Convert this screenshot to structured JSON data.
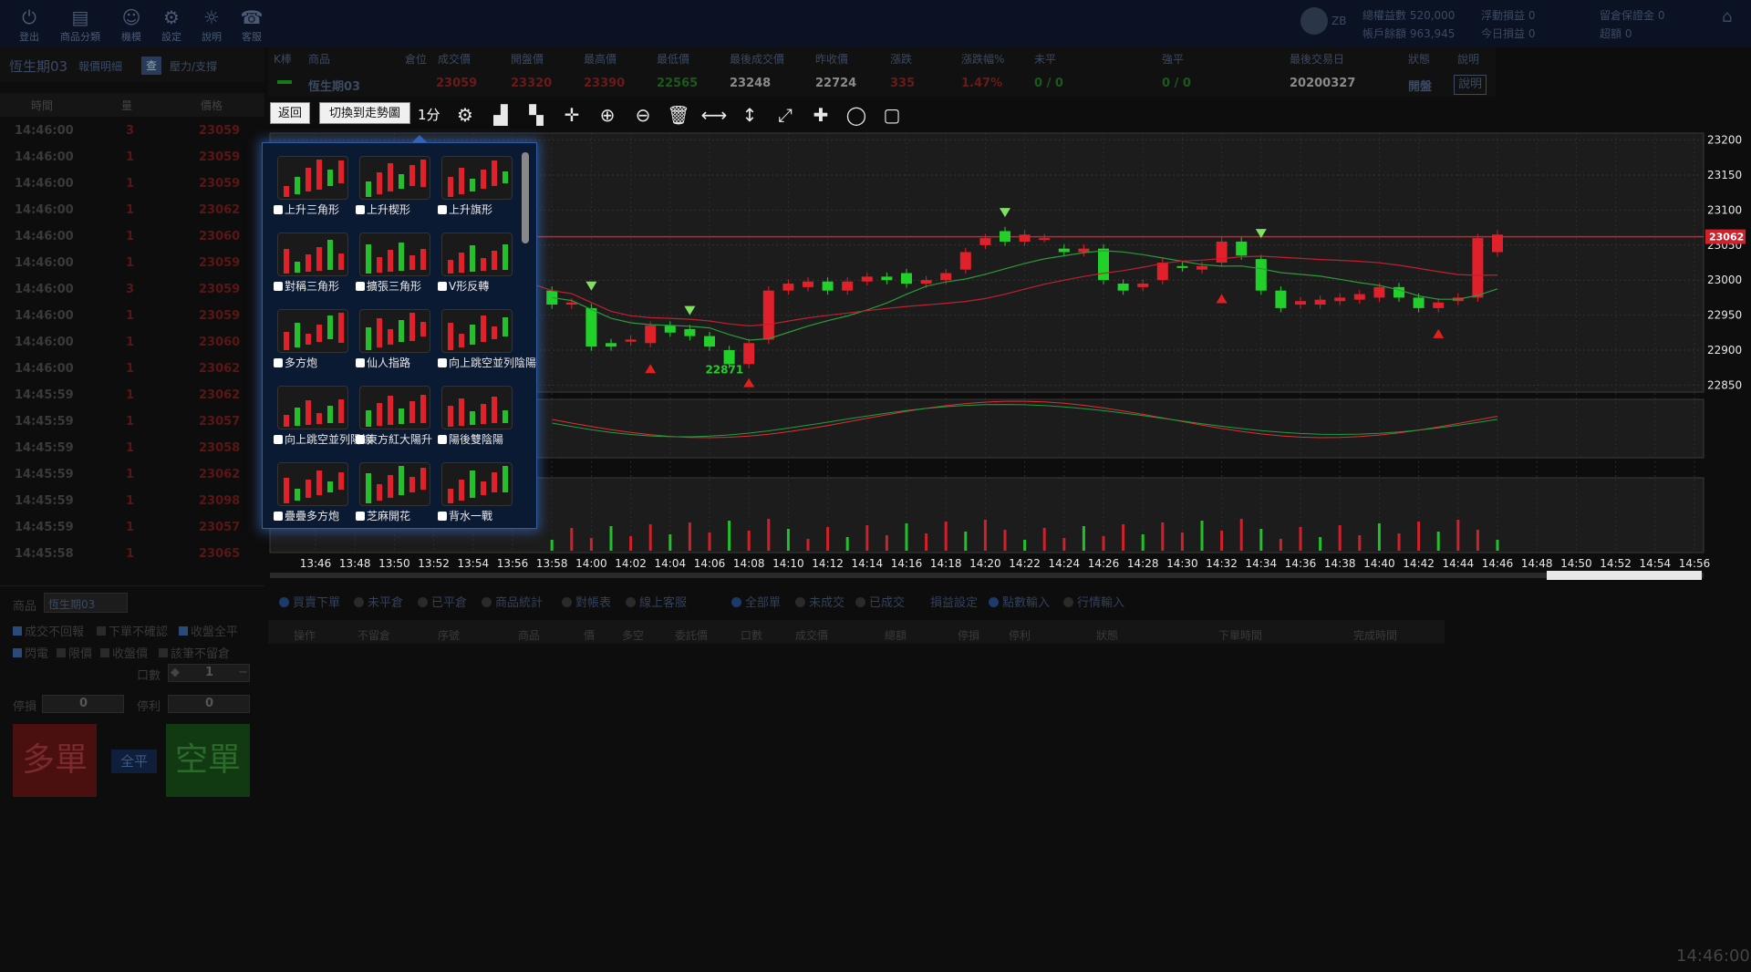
{
  "topbar": {
    "buttons": [
      {
        "label": "登出",
        "icon": "power-icon"
      },
      {
        "label": "商品分類",
        "icon": "folder-icon"
      },
      {
        "label": "機模",
        "icon": "simulator-icon"
      },
      {
        "label": "設定",
        "icon": "gear-icon"
      },
      {
        "label": "說明",
        "icon": "bulb-icon"
      },
      {
        "label": "客服",
        "icon": "service-icon"
      }
    ],
    "user": "ZB",
    "equity_label": "總權益數 520,000",
    "balance_label": "帳戶餘額 963,945",
    "float_pl": "浮動損益 0",
    "today_pl": "今日損益 0",
    "margin": "留倉保證金 0",
    "overrun": "超額 0"
  },
  "left": {
    "product": "恆生期03",
    "tab_quote": "報價明細",
    "tab_query": "查",
    "tab_sr": "壓力/支撐",
    "cols": [
      "時間",
      "量",
      "價格"
    ],
    "ticks": [
      {
        "t": "14:46:00",
        "q": "3",
        "p": "23059"
      },
      {
        "t": "14:46:00",
        "q": "1",
        "p": "23059"
      },
      {
        "t": "14:46:00",
        "q": "1",
        "p": "23059"
      },
      {
        "t": "14:46:00",
        "q": "1",
        "p": "23062"
      },
      {
        "t": "14:46:00",
        "q": "1",
        "p": "23060"
      },
      {
        "t": "14:46:00",
        "q": "1",
        "p": "23059"
      },
      {
        "t": "14:46:00",
        "q": "3",
        "p": "23059"
      },
      {
        "t": "14:46:00",
        "q": "1",
        "p": "23059"
      },
      {
        "t": "14:46:00",
        "q": "1",
        "p": "23060"
      },
      {
        "t": "14:46:00",
        "q": "1",
        "p": "23062"
      },
      {
        "t": "14:45:59",
        "q": "1",
        "p": "23062"
      },
      {
        "t": "14:45:59",
        "q": "1",
        "p": "23057"
      },
      {
        "t": "14:45:59",
        "q": "1",
        "p": "23058"
      },
      {
        "t": "14:45:59",
        "q": "1",
        "p": "23062"
      },
      {
        "t": "14:45:59",
        "q": "1",
        "p": "23098"
      },
      {
        "t": "14:45:59",
        "q": "1",
        "p": "23057"
      },
      {
        "t": "14:45:58",
        "q": "1",
        "p": "23065"
      }
    ]
  },
  "quote": {
    "headers": [
      "K棒",
      "商品",
      "倉位",
      "成交價",
      "開盤價",
      "最高價",
      "最低價",
      "最後成交價",
      "昨收價",
      "漲跌",
      "漲跌幅%",
      "未平",
      "強平",
      "最後交易日",
      "狀態",
      "說明"
    ],
    "product": "恆生期03",
    "last": "23059",
    "open": "23320",
    "high": "23390",
    "low": "22565",
    "last_trade": "23248",
    "prev_close": "22724",
    "change": "335",
    "change_pct": "1.47%",
    "open_pos": "0 / 0",
    "force": "0 / 0",
    "last_day": "20200327",
    "status": "開盤",
    "help": "說明"
  },
  "chart_toolbar": {
    "back": "返回",
    "switch": "切換到走勢圖",
    "interval": "1分",
    "icons": [
      "gear-icon",
      "bar-chart-icon",
      "candle-icon",
      "crosshair-icon",
      "zoom-in-icon",
      "zoom-out-icon",
      "trash-icon",
      "hline-icon",
      "vline-icon",
      "trendline-icon",
      "cross-icon",
      "ellipse-icon",
      "rect-icon"
    ]
  },
  "patterns": [
    {
      "label": "上升三角形"
    },
    {
      "label": "上升楔形"
    },
    {
      "label": "上升旗形"
    },
    {
      "label": "對稱三角形"
    },
    {
      "label": "擴張三角形"
    },
    {
      "label": "V形反轉"
    },
    {
      "label": "多方炮"
    },
    {
      "label": "仙人指路"
    },
    {
      "label": "向上跳空並列陰陽線"
    },
    {
      "label": "向上跳空並列陽線"
    },
    {
      "label": "東方紅大陽升"
    },
    {
      "label": "陽後雙陰陽"
    },
    {
      "label": "疊疊多方炮"
    },
    {
      "label": "芝麻開花"
    },
    {
      "label": "背水一戰"
    }
  ],
  "chart_data": {
    "type": "candlestick",
    "x_ticks": [
      "13:46",
      "13:48",
      "13:50",
      "13:52",
      "13:54",
      "13:56",
      "13:58",
      "14:00",
      "14:02",
      "14:04",
      "14:06",
      "14:08",
      "14:10",
      "14:12",
      "14:14",
      "14:16",
      "14:18",
      "14:20",
      "14:22",
      "14:24",
      "14:26",
      "14:28",
      "14:30",
      "14:32",
      "14:34",
      "14:36",
      "14:38",
      "14:40",
      "14:42",
      "14:44",
      "14:46",
      "14:48",
      "14:50",
      "14:52",
      "14:54",
      "14:56"
    ],
    "y_ticks": [
      23200,
      23150,
      23100,
      23050,
      23000,
      22950,
      22900,
      22850
    ],
    "ylim": [
      22840,
      23210
    ],
    "current_price": "23062",
    "low_label": "22871",
    "candles": [
      {
        "x": "13:58",
        "o": 22985,
        "c": 22965
      },
      {
        "x": "13:59",
        "o": 22965,
        "c": 22968
      },
      {
        "x": "14:00",
        "o": 22960,
        "c": 22905
      },
      {
        "x": "14:01",
        "o": 22910,
        "c": 22905
      },
      {
        "x": "14:02",
        "o": 22912,
        "c": 22915
      },
      {
        "x": "14:03",
        "o": 22910,
        "c": 22935
      },
      {
        "x": "14:04",
        "o": 22935,
        "c": 22925
      },
      {
        "x": "14:05",
        "o": 22930,
        "c": 22920
      },
      {
        "x": "14:06",
        "o": 22920,
        "c": 22905
      },
      {
        "x": "14:07",
        "o": 22900,
        "c": 22880
      },
      {
        "x": "14:08",
        "o": 22880,
        "c": 22910
      },
      {
        "x": "14:09",
        "o": 22915,
        "c": 22985
      },
      {
        "x": "14:10",
        "o": 22985,
        "c": 22995
      },
      {
        "x": "14:11",
        "o": 22990,
        "c": 22998
      },
      {
        "x": "14:12",
        "o": 22998,
        "c": 22985
      },
      {
        "x": "14:13",
        "o": 22985,
        "c": 22998
      },
      {
        "x": "14:14",
        "o": 22998,
        "c": 23005
      },
      {
        "x": "14:15",
        "o": 23005,
        "c": 23000
      },
      {
        "x": "14:16",
        "o": 23010,
        "c": 22995
      },
      {
        "x": "14:17",
        "o": 22995,
        "c": 23000
      },
      {
        "x": "14:18",
        "o": 23000,
        "c": 23010
      },
      {
        "x": "14:19",
        "o": 23015,
        "c": 23040
      },
      {
        "x": "14:20",
        "o": 23050,
        "c": 23060
      },
      {
        "x": "14:21",
        "o": 23070,
        "c": 23055
      },
      {
        "x": "14:22",
        "o": 23055,
        "c": 23065
      },
      {
        "x": "14:23",
        "o": 23060,
        "c": 23060
      },
      {
        "x": "14:24",
        "o": 23045,
        "c": 23040
      },
      {
        "x": "14:25",
        "o": 23040,
        "c": 23045
      },
      {
        "x": "14:26",
        "o": 23045,
        "c": 23000
      },
      {
        "x": "14:27",
        "o": 22995,
        "c": 22985
      },
      {
        "x": "14:28",
        "o": 22990,
        "c": 22995
      },
      {
        "x": "14:29",
        "o": 23000,
        "c": 23025
      },
      {
        "x": "14:30",
        "o": 23020,
        "c": 23018
      },
      {
        "x": "14:31",
        "o": 23015,
        "c": 23020
      },
      {
        "x": "14:32",
        "o": 23025,
        "c": 23055
      },
      {
        "x": "14:33",
        "o": 23055,
        "c": 23035
      },
      {
        "x": "14:34",
        "o": 23030,
        "c": 22985
      },
      {
        "x": "14:35",
        "o": 22985,
        "c": 22960
      },
      {
        "x": "14:36",
        "o": 22965,
        "c": 22970
      },
      {
        "x": "14:37",
        "o": 22965,
        "c": 22972
      },
      {
        "x": "14:38",
        "o": 22970,
        "c": 22975
      },
      {
        "x": "14:39",
        "o": 22972,
        "c": 22980
      },
      {
        "x": "14:40",
        "o": 22975,
        "c": 22990
      },
      {
        "x": "14:41",
        "o": 22990,
        "c": 22975
      },
      {
        "x": "14:42",
        "o": 22975,
        "c": 22960
      },
      {
        "x": "14:43",
        "o": 22960,
        "c": 22968
      },
      {
        "x": "14:44",
        "o": 22970,
        "c": 22975
      },
      {
        "x": "14:45",
        "o": 22975,
        "c": 23060
      },
      {
        "x": "14:46",
        "o": 23040,
        "c": 23065
      }
    ]
  },
  "order": {
    "product_label": "商品",
    "product": "恆生期03",
    "opts": [
      "成交不回報",
      "下單不確認",
      "收盤全平",
      "閃電",
      "限價",
      "收盤價",
      "該筆不留倉"
    ],
    "qty_label": "口數",
    "qty": "1",
    "stop_label": "停損",
    "stop": "0",
    "take_label": "停利",
    "take": "0",
    "long": "多單",
    "flat": "全平",
    "short": "空單"
  },
  "tabs": [
    "買賣下單",
    "未平倉",
    "已平倉",
    "商品統計",
    "對帳表",
    "線上客服",
    "全部單",
    "未成交",
    "已成交",
    "損益設定",
    "點數輸入",
    "行情輸入"
  ],
  "order_cols": [
    "操作",
    "不留倉",
    "序號",
    "商品",
    "價",
    "多空",
    "委託價",
    "口數",
    "成交價",
    "總額",
    "停損",
    "停利",
    "狀態",
    "下單時間",
    "完成時間"
  ],
  "clock": "14:46:00"
}
